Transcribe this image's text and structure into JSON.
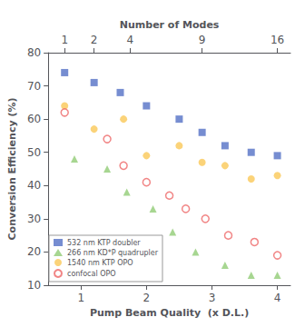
{
  "chart_data": {
    "type": "scatter",
    "xlabel": "Pump Beam Quality  (x D.L.)",
    "ylabel": "Conversion Efficiency (%)",
    "x2label": "Number of Modes",
    "xlim": [
      0.5,
      4.2
    ],
    "xticks": [
      1,
      2,
      3,
      4
    ],
    "x2ticks": [
      {
        "value": 0.75,
        "label": "1"
      },
      {
        "value": 1.2,
        "label": "2"
      },
      {
        "value": 1.75,
        "label": "4"
      },
      {
        "value": 2.85,
        "label": "9"
      },
      {
        "value": 4.0,
        "label": "16"
      }
    ],
    "ylim": [
      10,
      80
    ],
    "yticks": [
      10,
      20,
      30,
      40,
      50,
      60,
      70,
      80
    ],
    "grid": false,
    "legend": "lower left",
    "series": [
      {
        "name": "532 nm KTP doubler",
        "marker": "square",
        "x": [
          0.75,
          1.2,
          1.6,
          2.0,
          2.5,
          2.85,
          3.2,
          3.6,
          4.0
        ],
        "values": [
          74,
          71,
          68,
          64,
          60,
          56,
          52,
          50,
          49
        ]
      },
      {
        "name": "266 nm KD*P quadrupler",
        "marker": "triangle",
        "x": [
          0.9,
          1.4,
          1.7,
          2.1,
          2.4,
          2.75,
          3.2,
          3.6,
          4.0
        ],
        "values": [
          48,
          45,
          38,
          33,
          26,
          20,
          16,
          13,
          13
        ]
      },
      {
        "name": "1540 nm KTP OPO",
        "marker": "circle",
        "x": [
          0.75,
          1.2,
          1.65,
          2.0,
          2.5,
          2.85,
          3.2,
          3.6,
          4.0
        ],
        "values": [
          64,
          57,
          60,
          49,
          52,
          47,
          46,
          42,
          43
        ]
      },
      {
        "name": "confocal OPO",
        "marker": "hollow circle",
        "x": [
          0.75,
          1.4,
          1.65,
          2.0,
          2.35,
          2.6,
          2.9,
          3.25,
          3.65,
          4.0
        ],
        "values": [
          62,
          54,
          46,
          41,
          37,
          33,
          30,
          25,
          23,
          19
        ]
      }
    ]
  }
}
